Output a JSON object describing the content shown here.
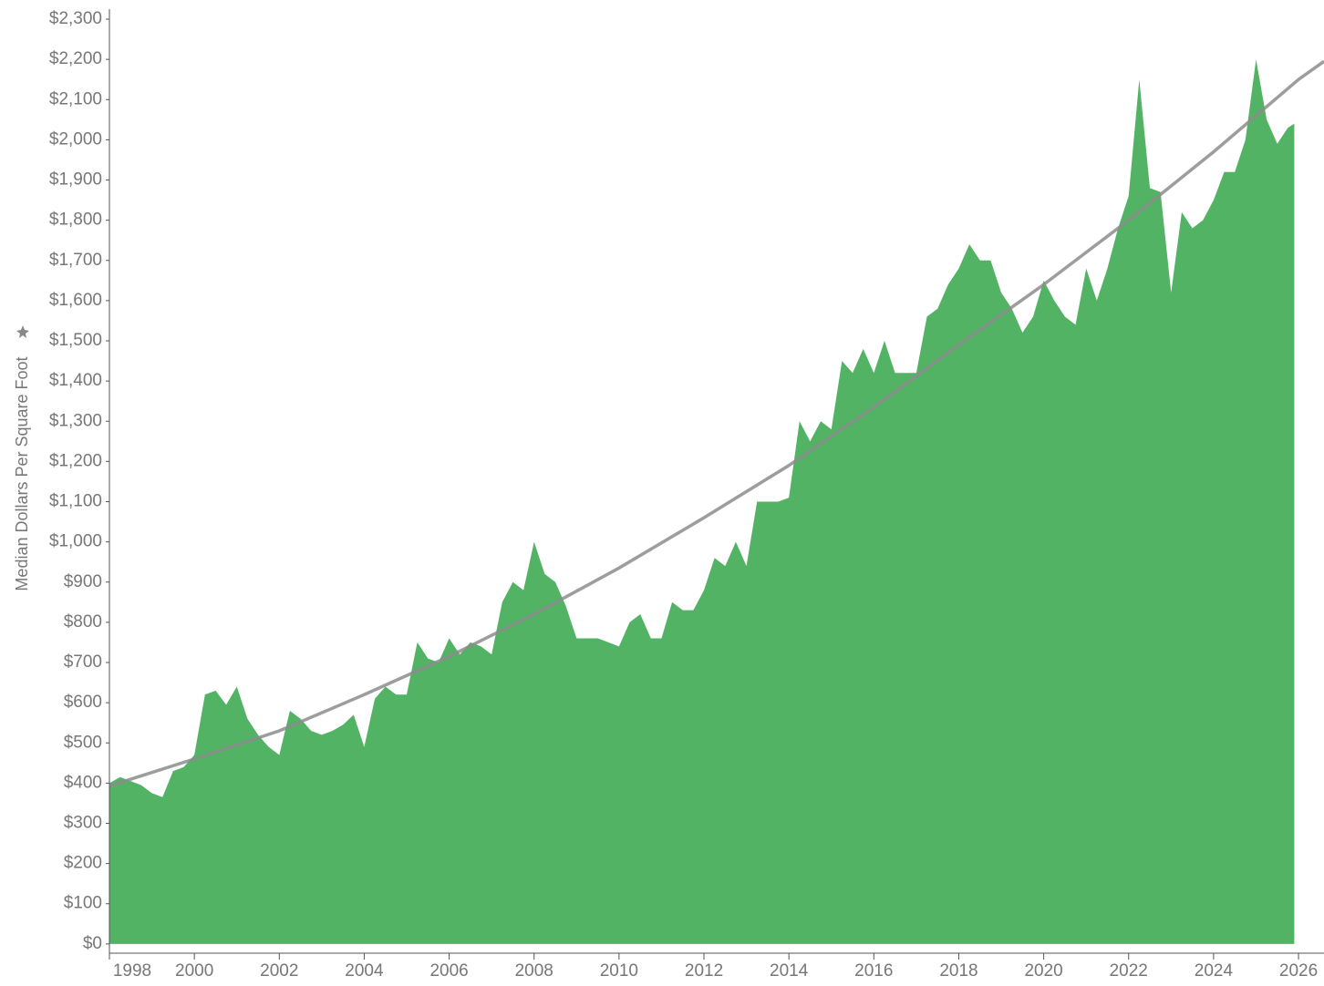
{
  "chart_data": {
    "type": "area",
    "y_label": "Median Dollars Per Square Foot",
    "x": [
      1998.0,
      1998.25,
      1998.5,
      1998.75,
      1999.0,
      1999.25,
      1999.5,
      1999.75,
      2000.0,
      2000.25,
      2000.5,
      2000.75,
      2001.0,
      2001.25,
      2001.5,
      2001.75,
      2002.0,
      2002.25,
      2002.5,
      2002.75,
      2003.0,
      2003.25,
      2003.5,
      2003.75,
      2004.0,
      2004.25,
      2004.5,
      2004.75,
      2005.0,
      2005.25,
      2005.5,
      2005.75,
      2006.0,
      2006.25,
      2006.5,
      2006.75,
      2007.0,
      2007.25,
      2007.5,
      2007.75,
      2008.0,
      2008.25,
      2008.5,
      2008.75,
      2009.0,
      2009.25,
      2009.5,
      2009.75,
      2010.0,
      2010.25,
      2010.5,
      2010.75,
      2011.0,
      2011.25,
      2011.5,
      2011.75,
      2012.0,
      2012.25,
      2012.5,
      2012.75,
      2013.0,
      2013.25,
      2013.5,
      2013.75,
      2014.0,
      2014.25,
      2014.5,
      2014.75,
      2015.0,
      2015.25,
      2015.5,
      2015.75,
      2016.0,
      2016.25,
      2016.5,
      2016.75,
      2017.0,
      2017.25,
      2017.5,
      2017.75,
      2018.0,
      2018.25,
      2018.5,
      2018.75,
      2019.0,
      2019.25,
      2019.5,
      2019.75,
      2020.0,
      2020.25,
      2020.5,
      2020.75,
      2021.0,
      2021.25,
      2021.5,
      2021.75,
      2022.0,
      2022.25,
      2022.5,
      2022.75,
      2023.0,
      2023.25,
      2023.5,
      2023.75,
      2024.0,
      2024.25,
      2024.5,
      2024.75,
      2025.0,
      2025.25,
      2025.5,
      2025.75,
      2025.9
    ],
    "values": [
      400,
      415,
      405,
      395,
      375,
      365,
      430,
      440,
      470,
      620,
      630,
      595,
      640,
      560,
      520,
      490,
      470,
      580,
      560,
      530,
      520,
      530,
      545,
      570,
      490,
      610,
      640,
      620,
      620,
      750,
      710,
      700,
      760,
      720,
      750,
      740,
      720,
      850,
      900,
      880,
      1000,
      920,
      900,
      840,
      760,
      760,
      760,
      750,
      740,
      800,
      820,
      760,
      760,
      850,
      830,
      830,
      880,
      960,
      940,
      1000,
      940,
      1100,
      1100,
      1100,
      1110,
      1300,
      1250,
      1300,
      1280,
      1450,
      1420,
      1480,
      1420,
      1500,
      1420,
      1420,
      1420,
      1560,
      1580,
      1640,
      1680,
      1740,
      1700,
      1700,
      1620,
      1580,
      1520,
      1560,
      1650,
      1600,
      1560,
      1540,
      1680,
      1600,
      1680,
      1780,
      1860,
      2150,
      1880,
      1870,
      1620,
      1820,
      1780,
      1800,
      1850,
      1920,
      1920,
      2000,
      2200,
      2050,
      1990,
      2030,
      2040
    ],
    "color": "#52b365",
    "trendline": {
      "x": [
        1998,
        2000,
        2002,
        2004,
        2006,
        2008,
        2010,
        2012,
        2014,
        2016,
        2018,
        2020,
        2022,
        2024,
        2026,
        2026.6
      ],
      "values": [
        393,
        460,
        530,
        620,
        715,
        820,
        935,
        1060,
        1190,
        1335,
        1490,
        1640,
        1800,
        1970,
        2150,
        2195
      ],
      "color": "#8c8c8c"
    },
    "xlim": [
      1998,
      2026.6
    ],
    "xticks": [
      1998,
      2000,
      2002,
      2004,
      2006,
      2008,
      2010,
      2012,
      2014,
      2016,
      2018,
      2020,
      2022,
      2024,
      2026
    ],
    "ylim": [
      -23,
      2325
    ],
    "yticks": [
      {
        "value": 0,
        "label": "$0"
      },
      {
        "value": 100,
        "label": "$100"
      },
      {
        "value": 200,
        "label": "$200"
      },
      {
        "value": 300,
        "label": "$300"
      },
      {
        "value": 400,
        "label": "$400"
      },
      {
        "value": 500,
        "label": "$500"
      },
      {
        "value": 600,
        "label": "$600"
      },
      {
        "value": 700,
        "label": "$700"
      },
      {
        "value": 800,
        "label": "$800"
      },
      {
        "value": 900,
        "label": "$900"
      },
      {
        "value": 1000,
        "label": "$1,000"
      },
      {
        "value": 1100,
        "label": "$1,100"
      },
      {
        "value": 1200,
        "label": "$1,200"
      },
      {
        "value": 1300,
        "label": "$1,300"
      },
      {
        "value": 1400,
        "label": "$1,400"
      },
      {
        "value": 1500,
        "label": "$1,500"
      },
      {
        "value": 1600,
        "label": "$1,600"
      },
      {
        "value": 1700,
        "label": "$1,700"
      },
      {
        "value": 1800,
        "label": "$1,800"
      },
      {
        "value": 1900,
        "label": "$1,900"
      },
      {
        "value": 2000,
        "label": "$2,000"
      },
      {
        "value": 2100,
        "label": "$2,100"
      },
      {
        "value": 2200,
        "label": "$2,200"
      },
      {
        "value": 2300,
        "label": "$2,300"
      }
    ]
  }
}
